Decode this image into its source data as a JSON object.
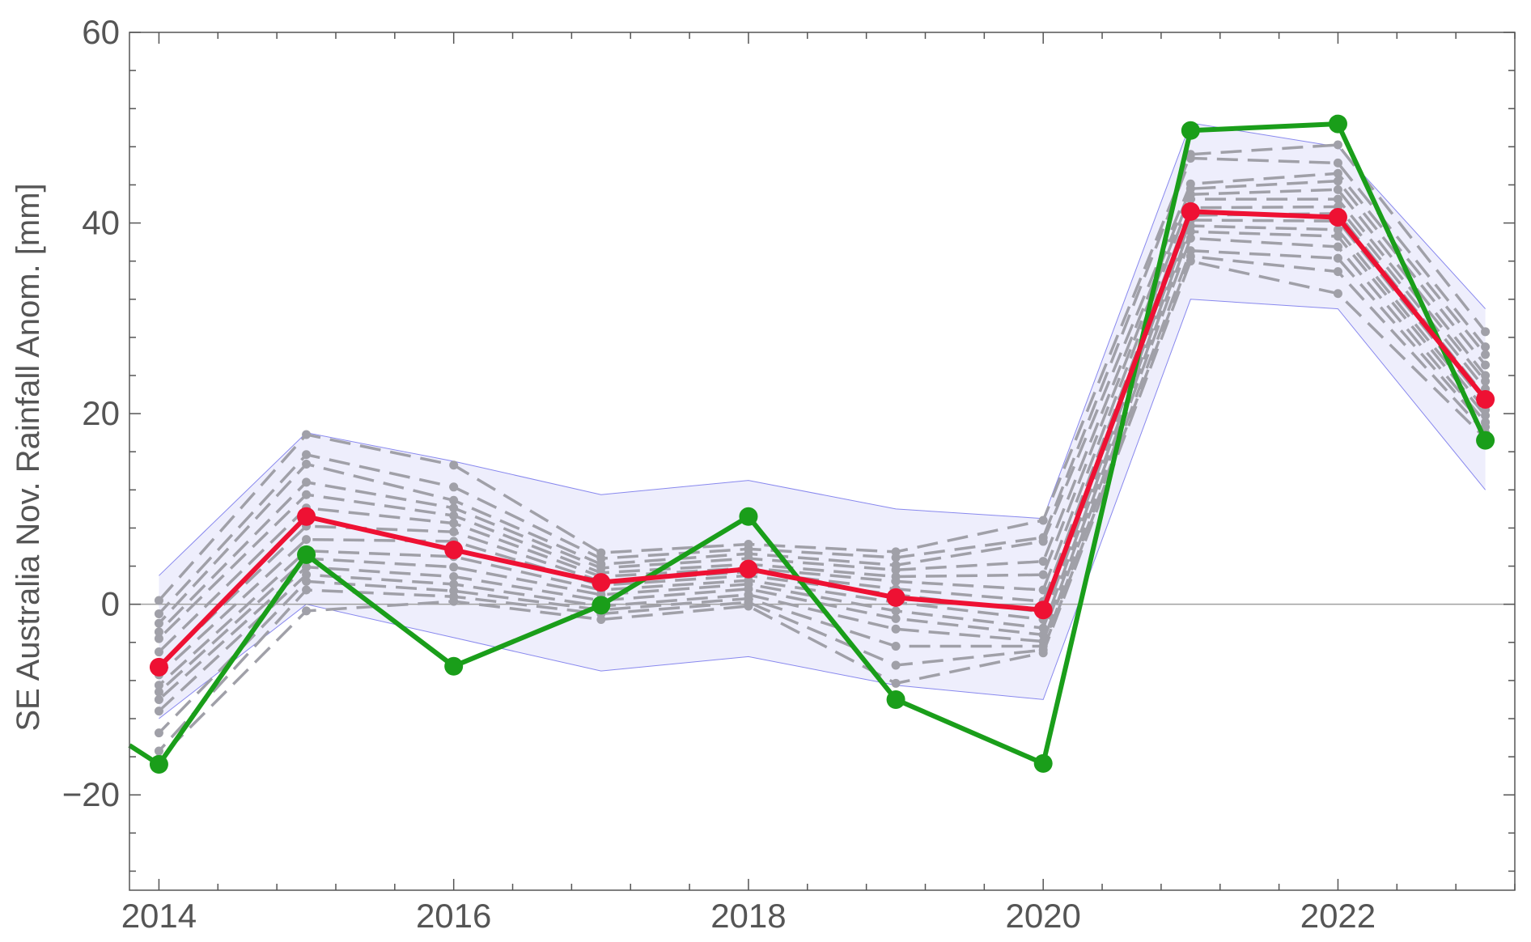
{
  "chart_data": {
    "type": "line",
    "title": "",
    "xlabel": "",
    "ylabel": "SE Australia Nov. Rainfall Anom. [mm]",
    "xlim": [
      2013.8,
      2023.2
    ],
    "ylim": [
      -30,
      60
    ],
    "x_ticks": [
      2014,
      2016,
      2018,
      2020,
      2022
    ],
    "x_tick_labels": [
      "2014",
      "2016",
      "2018",
      "2020",
      "2022"
    ],
    "y_ticks": [
      -20,
      0,
      20,
      40,
      60
    ],
    "y_tick_labels": [
      "−20",
      "0",
      "20",
      "40",
      "60"
    ],
    "x": [
      2014,
      2015,
      2016,
      2017,
      2018,
      2019,
      2020,
      2021,
      2022,
      2023
    ],
    "grid": false,
    "legend": "none",
    "zero_line": true,
    "band": {
      "upper": [
        3,
        18,
        15,
        11.5,
        13,
        10,
        9,
        50.5,
        48,
        31
      ],
      "lower": [
        -12,
        0,
        -3.5,
        -7,
        -5.5,
        -8.5,
        -10,
        32,
        31,
        12
      ],
      "fill_color": "#eeeefc",
      "edge_color": "#8888ee"
    },
    "series": [
      {
        "values": [
          -16.8,
          5.2,
          -6.5,
          -0.1,
          9.2,
          -10,
          -16.7,
          49.7,
          50.4,
          17.2
        ],
        "color": "#1a9e1a",
        "lead_in": [
          2013.8,
          -14.8
        ]
      },
      {
        "values": [
          -6.6,
          9.2,
          5.7,
          2.3,
          3.7,
          0.7,
          -0.6,
          41.2,
          40.6,
          21.5
        ],
        "color": "#ee1133"
      }
    ],
    "ensemble": {
      "color": "#a0a0a8",
      "members": [
        [
          0.4,
          17.8,
          14.6,
          5.4,
          6.3,
          5.5,
          8.8,
          47.2,
          48.2,
          28.6
        ],
        [
          -1.0,
          15.7,
          12.3,
          4.8,
          5.8,
          4.9,
          7.0,
          46.8,
          46.3,
          27.0
        ],
        [
          -2.0,
          14.7,
          10.9,
          4.2,
          5.3,
          4.1,
          6.6,
          44.1,
          45.2,
          26.2
        ],
        [
          -2.9,
          12.8,
          10.1,
          3.8,
          4.8,
          3.6,
          4.5,
          43.6,
          44.4,
          25.1
        ],
        [
          -3.6,
          11.5,
          9.3,
          3.3,
          4.2,
          2.9,
          3.1,
          43.0,
          43.5,
          24.0
        ],
        [
          -5.0,
          10.1,
          8.5,
          2.9,
          3.8,
          2.4,
          1.5,
          42.5,
          42.5,
          23.4
        ],
        [
          -6.5,
          8.2,
          7.6,
          2.4,
          3.4,
          1.6,
          0.3,
          41.6,
          41.7,
          22.6
        ],
        [
          -7.4,
          6.8,
          6.6,
          2.0,
          3.0,
          1.0,
          -0.8,
          40.8,
          41.0,
          21.8
        ],
        [
          -8.5,
          5.6,
          5.0,
          1.5,
          2.5,
          0.2,
          -1.6,
          40.3,
          40.2,
          21.1
        ],
        [
          -9.2,
          4.8,
          3.9,
          1.0,
          2.1,
          -0.7,
          -2.5,
          39.7,
          39.3,
          20.4
        ],
        [
          -10.0,
          3.9,
          2.9,
          0.4,
          1.6,
          -1.5,
          -3.2,
          39.1,
          38.6,
          19.8
        ],
        [
          -11.2,
          3.1,
          2.1,
          -0.2,
          1.0,
          -2.6,
          -3.9,
          38.4,
          37.5,
          19.1
        ],
        [
          -13.5,
          2.4,
          1.4,
          -0.6,
          0.6,
          -4.4,
          -4.4,
          37.1,
          36.3,
          18.6
        ],
        [
          -15.4,
          1.5,
          0.8,
          -1.0,
          0.2,
          -6.4,
          -4.8,
          36.5,
          34.9,
          18.0
        ],
        [
          -16.2,
          -0.7,
          0.3,
          -1.6,
          -0.2,
          -8.3,
          -5.1,
          36.0,
          32.6,
          17.4
        ]
      ]
    }
  }
}
